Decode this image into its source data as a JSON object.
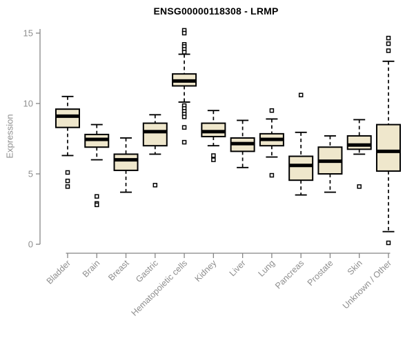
{
  "colors": {
    "box_fill": "#efe7cc",
    "box_border": "#000000",
    "median": "#000000",
    "axis": "#858585",
    "tick_label": "#8e8e8e",
    "title": "#000000",
    "outlier_fill": "#ffffff"
  },
  "chart_data": {
    "type": "boxplot",
    "title": "ENSG00000118308 - LRMP",
    "xlabel": "",
    "ylabel": "Expression",
    "ylim": [
      0,
      15
    ],
    "yticks": [
      0,
      5,
      10,
      15
    ],
    "grid": false,
    "legend": "none",
    "categories": [
      "Bladder",
      "Brain",
      "Breast",
      "Gastric",
      "Hematopoietic cells",
      "Kidney",
      "Liver",
      "Lung",
      "Pancreas",
      "Prostate",
      "Skin",
      "Unknown / Other"
    ],
    "series": [
      {
        "name": "Bladder",
        "whisker_low": 6.3,
        "q1": 8.3,
        "median": 9.1,
        "q3": 9.6,
        "whisker_high": 10.5,
        "outliers": [
          5.1,
          4.5,
          4.1
        ]
      },
      {
        "name": "Brain",
        "whisker_low": 6.0,
        "q1": 6.9,
        "median": 7.45,
        "q3": 7.8,
        "whisker_high": 8.5,
        "outliers": [
          3.4,
          2.9,
          2.8
        ]
      },
      {
        "name": "Breast",
        "whisker_low": 3.7,
        "q1": 5.25,
        "median": 6.0,
        "q3": 6.4,
        "whisker_high": 7.55,
        "outliers": []
      },
      {
        "name": "Gastric",
        "whisker_low": 6.4,
        "q1": 7.0,
        "median": 8.0,
        "q3": 8.6,
        "whisker_high": 9.2,
        "outliers": [
          4.2
        ]
      },
      {
        "name": "Hematopoietic cells",
        "whisker_low": 10.1,
        "q1": 11.25,
        "median": 11.6,
        "q3": 12.1,
        "whisker_high": 13.5,
        "outliers": [
          15.2,
          15.0,
          14.2,
          14.05,
          13.85,
          13.65,
          9.85,
          9.65,
          9.45,
          9.25,
          9.05,
          8.3,
          7.25
        ]
      },
      {
        "name": "Kidney",
        "whisker_low": 7.0,
        "q1": 7.65,
        "median": 8.0,
        "q3": 8.6,
        "whisker_high": 9.5,
        "outliers": [
          6.3,
          6.0
        ]
      },
      {
        "name": "Liver",
        "whisker_low": 5.45,
        "q1": 6.6,
        "median": 7.15,
        "q3": 7.55,
        "whisker_high": 8.8,
        "outliers": []
      },
      {
        "name": "Lung",
        "whisker_low": 6.2,
        "q1": 7.0,
        "median": 7.45,
        "q3": 7.85,
        "whisker_high": 8.9,
        "outliers": [
          9.5,
          4.9
        ]
      },
      {
        "name": "Pancreas",
        "whisker_low": 3.5,
        "q1": 4.55,
        "median": 5.6,
        "q3": 6.25,
        "whisker_high": 7.95,
        "outliers": [
          10.6
        ]
      },
      {
        "name": "Prostate",
        "whisker_low": 3.7,
        "q1": 5.0,
        "median": 5.9,
        "q3": 6.9,
        "whisker_high": 7.7,
        "outliers": []
      },
      {
        "name": "Skin",
        "whisker_low": 6.4,
        "q1": 6.75,
        "median": 7.05,
        "q3": 7.7,
        "whisker_high": 8.85,
        "outliers": [
          4.1
        ]
      },
      {
        "name": "Unknown / Other",
        "whisker_low": 0.9,
        "q1": 5.2,
        "median": 6.6,
        "q3": 8.5,
        "whisker_high": 13.0,
        "outliers": [
          14.65,
          14.25,
          13.75,
          0.1
        ]
      }
    ]
  }
}
